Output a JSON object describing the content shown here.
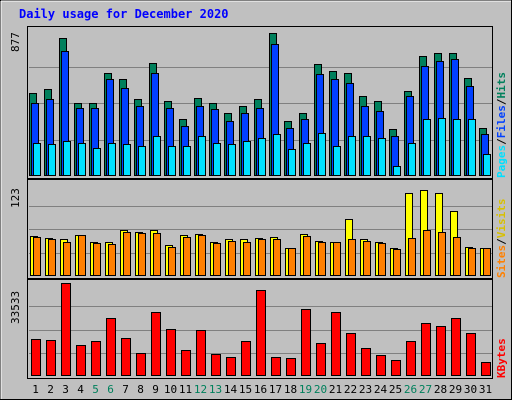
{
  "chart_data": {
    "type": "bar",
    "title": "Daily usage for December 2020",
    "days": [
      "1",
      "2",
      "3",
      "4",
      "5",
      "6",
      "7",
      "8",
      "9",
      "10",
      "11",
      "12",
      "13",
      "14",
      "15",
      "16",
      "17",
      "18",
      "19",
      "20",
      "21",
      "22",
      "23",
      "24",
      "25",
      "26",
      "27",
      "28",
      "29",
      "30",
      "31"
    ],
    "weekend_days": [
      "5",
      "6",
      "12",
      "13",
      "19",
      "20",
      "26",
      "27"
    ],
    "colors": {
      "hits": "#00805c",
      "files": "#0040ff",
      "pages": "#00e0ff",
      "visits": "#ffff00",
      "sites": "#ff8000",
      "kbytes": "#ff0000",
      "title": "#0000ff",
      "weekend": "#00805c",
      "background": "#c0c0c0"
    },
    "panels": {
      "top": {
        "max_label": "877",
        "max": 877,
        "legend": {
          "pages": "Pages",
          "files": "Files",
          "hits": "Hits",
          "sep": "/"
        },
        "series": {
          "hits": [
            500,
            520,
            830,
            440,
            440,
            620,
            580,
            460,
            680,
            450,
            340,
            470,
            440,
            380,
            420,
            460,
            860,
            330,
            380,
            670,
            630,
            620,
            480,
            450,
            280,
            510,
            720,
            740,
            740,
            590,
            290
          ],
          "files": [
            440,
            460,
            750,
            410,
            410,
            580,
            530,
            420,
            620,
            410,
            300,
            420,
            400,
            330,
            380,
            410,
            790,
            290,
            340,
            610,
            580,
            560,
            420,
            390,
            240,
            480,
            660,
            690,
            700,
            540,
            250
          ],
          "pages": [
            200,
            190,
            210,
            200,
            170,
            200,
            190,
            180,
            240,
            180,
            180,
            240,
            200,
            190,
            210,
            230,
            250,
            160,
            200,
            260,
            180,
            240,
            240,
            230,
            60,
            200,
            340,
            350,
            340,
            340,
            130
          ]
        }
      },
      "middle": {
        "max_label": "123",
        "max": 123,
        "legend": {
          "sites": "Sites",
          "visits": "Visits",
          "sep": "/"
        },
        "series": {
          "visits": [
            52,
            50,
            48,
            53,
            45,
            44,
            60,
            58,
            60,
            40,
            53,
            55,
            44,
            48,
            48,
            50,
            51,
            37,
            55,
            46,
            44,
            74,
            48,
            44,
            37,
            108,
            113,
            108,
            85,
            38,
            37
          ],
          "sites": [
            51,
            49,
            45,
            53,
            43,
            42,
            58,
            56,
            56,
            38,
            51,
            53,
            43,
            46,
            45,
            48,
            48,
            36,
            52,
            45,
            44,
            48,
            46,
            43,
            35,
            50,
            60,
            58,
            51,
            36,
            36
          ]
        }
      },
      "bottom": {
        "max_label": "33533",
        "max": 33533,
        "legend": {
          "kbytes": "KBytes"
        },
        "series": {
          "kbytes": [
            13500,
            13000,
            33500,
            11000,
            12500,
            21000,
            13800,
            8200,
            23000,
            17000,
            9500,
            16500,
            8000,
            6800,
            12500,
            31000,
            6800,
            6600,
            24000,
            12000,
            23000,
            15500,
            10200,
            7400,
            5800,
            12500,
            19000,
            18000,
            21000,
            15500,
            5000
          ]
        }
      }
    }
  }
}
